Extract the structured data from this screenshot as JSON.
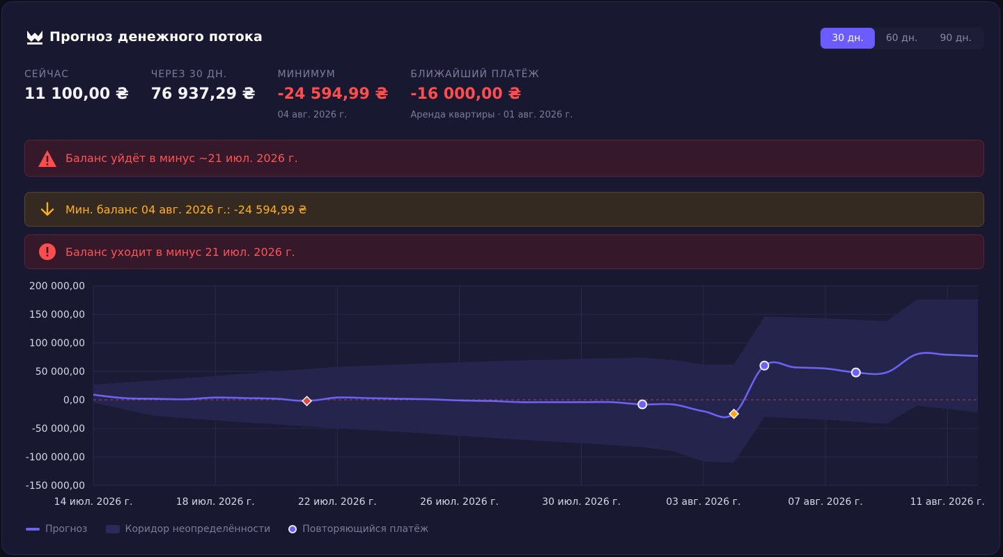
{
  "header": {
    "title": "Прогноз денежного потока"
  },
  "ranges": [
    {
      "label": "30 дн.",
      "active": true
    },
    {
      "label": "60 дн.",
      "active": false
    },
    {
      "label": "90 дн.",
      "active": false
    }
  ],
  "stats": [
    {
      "label": "СЕЙЧАС",
      "value": "11 100,00 ₴",
      "sub": "",
      "negative": false
    },
    {
      "label": "ЧЕРЕЗ 30 ДН.",
      "value": "76 937,29 ₴",
      "sub": "",
      "negative": false
    },
    {
      "label": "МИНИМУМ",
      "value": "-24 594,99 ₴",
      "sub": "04 авг. 2026 г.",
      "negative": true
    },
    {
      "label": "БЛИЖАЙШИЙ ПЛАТЁЖ",
      "value": "-16 000,00 ₴",
      "sub": "Аренда квартиры · 01 авг. 2026 г.",
      "negative": true
    }
  ],
  "alerts": [
    {
      "text": "Баланс уйдёт в минус ~21 июл. 2026 г.",
      "kind": "danger",
      "icon": "warning-triangle-icon"
    },
    {
      "text": "Мин. баланс 04 авг. 2026 г.: -24 594,99 ₴",
      "kind": "warning",
      "icon": "arrow-down-icon"
    },
    {
      "text": "Баланс уходит в минус 21 июл. 2026 г.",
      "kind": "danger",
      "icon": "error-circle-icon"
    }
  ],
  "legend": {
    "forecast": "Прогноз",
    "band": "Коридор неопределённости",
    "recurring": "Повторяющийся платёж"
  },
  "colors": {
    "accent": "#6b5cff",
    "line": "#6e62f5",
    "band": "#25254e",
    "negative": "#ff4d4d",
    "warning": "#ffb020"
  },
  "chart_data": {
    "type": "line",
    "title": "",
    "xlabel": "",
    "ylabel": "",
    "ylim": [
      -150000,
      200000
    ],
    "yticks": [
      200000,
      150000,
      100000,
      50000,
      0,
      -50000,
      -100000,
      -150000
    ],
    "ytick_labels": [
      "200 000,00",
      "150 000,00",
      "100 000,00",
      "50 000,00",
      "0,00",
      "-50 000,00",
      "-100 000,00",
      "-150 000,00"
    ],
    "xlim": [
      "2026-07-14",
      "2026-08-12"
    ],
    "xticks": [
      "2026-07-14",
      "2026-07-18",
      "2026-07-22",
      "2026-07-26",
      "2026-07-30",
      "2026-08-03",
      "2026-08-07",
      "2026-08-11"
    ],
    "xtick_labels": [
      "14 июл. 2026 г.",
      "18 июл. 2026 г.",
      "22 июл. 2026 г.",
      "26 июл. 2026 г.",
      "30 июл. 2026 г.",
      "03 авг. 2026 г.",
      "07 авг. 2026 г.",
      "11 авг. 2026 г."
    ],
    "grid": true,
    "legend_position": "bottom-left",
    "series": [
      {
        "name": "Прогноз",
        "x": [
          "2026-07-14",
          "2026-07-15",
          "2026-07-16",
          "2026-07-17",
          "2026-07-18",
          "2026-07-19",
          "2026-07-20",
          "2026-07-21",
          "2026-07-22",
          "2026-07-23",
          "2026-07-24",
          "2026-07-25",
          "2026-07-26",
          "2026-07-27",
          "2026-07-28",
          "2026-07-29",
          "2026-07-30",
          "2026-07-31",
          "2026-08-01",
          "2026-08-02",
          "2026-08-03",
          "2026-08-04",
          "2026-08-05",
          "2026-08-06",
          "2026-08-07",
          "2026-08-08",
          "2026-08-09",
          "2026-08-10",
          "2026-08-11",
          "2026-08-12"
        ],
        "y": [
          9000,
          3000,
          2000,
          1000,
          4000,
          3000,
          2000,
          -2000,
          4000,
          3000,
          2000,
          1000,
          -1000,
          -2000,
          -4000,
          -4000,
          -4000,
          -4000,
          -8000,
          -8000,
          -20000,
          -24595,
          60000,
          57000,
          55000,
          48000,
          48000,
          80000,
          79000,
          77000
        ]
      },
      {
        "name": "Коридор неопределённости",
        "type": "band",
        "x": [
          "2026-07-14",
          "2026-07-16",
          "2026-07-18",
          "2026-07-20",
          "2026-07-22",
          "2026-07-24",
          "2026-07-26",
          "2026-07-28",
          "2026-07-30",
          "2026-08-01",
          "2026-08-02",
          "2026-08-03",
          "2026-08-04",
          "2026-08-05",
          "2026-08-07",
          "2026-08-09",
          "2026-08-10",
          "2026-08-12"
        ],
        "upper": [
          27000,
          34000,
          42000,
          50000,
          58000,
          62000,
          66000,
          69000,
          72000,
          74000,
          70000,
          62000,
          62000,
          146000,
          143000,
          138000,
          176000,
          176000
        ],
        "lower": [
          -5000,
          -28000,
          -36000,
          -43000,
          -50000,
          -56000,
          -63000,
          -70000,
          -76000,
          -83000,
          -90000,
          -108000,
          -110000,
          -30000,
          -35000,
          -42000,
          -10000,
          -22000
        ]
      }
    ],
    "markers": [
      {
        "name": "Переход в минус",
        "x": "2026-07-21",
        "y": -2000,
        "shape": "diamond",
        "color": "#e04b3f"
      },
      {
        "name": "Повторяющийся платёж",
        "x": "2026-08-01",
        "y": -8000,
        "shape": "circle"
      },
      {
        "name": "Минимум",
        "x": "2026-08-04",
        "y": -24595,
        "shape": "diamond",
        "color": "#ffa51a"
      },
      {
        "name": "Повторяющийся платёж",
        "x": "2026-08-05",
        "y": 60000,
        "shape": "circle"
      },
      {
        "name": "Повторяющийся платёж",
        "x": "2026-08-08",
        "y": 48000,
        "shape": "circle"
      }
    ]
  }
}
